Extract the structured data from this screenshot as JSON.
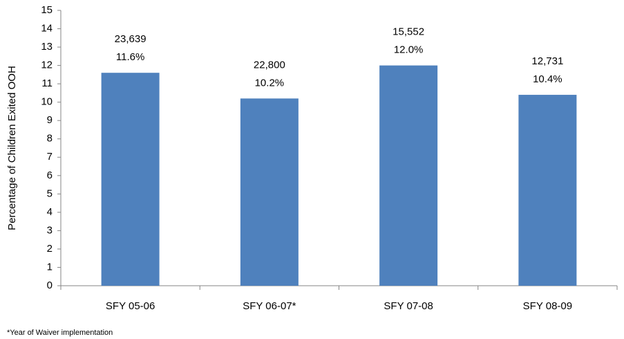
{
  "chart_data": {
    "type": "bar",
    "y_axis_label": "Percentage of Children Exited OOH",
    "categories": [
      "SFY 05-06",
      "SFY 06-07*",
      "SFY 07-08",
      "SFY 08-09"
    ],
    "values": [
      11.6,
      10.2,
      12.0,
      10.4
    ],
    "value_labels": [
      "11.6%",
      "10.2%",
      "12.0%",
      "10.4%"
    ],
    "counts": [
      {
        "value": 23639,
        "label": "23,639"
      },
      {
        "value": 22800,
        "label": "22,800"
      },
      {
        "value": 15552,
        "label": "15,552"
      },
      {
        "value": 12731,
        "label": "12,731"
      }
    ],
    "color": "#4f81bd",
    "ylim": [
      0,
      15
    ],
    "yticks": [
      0,
      1,
      2,
      3,
      4,
      5,
      6,
      7,
      8,
      9,
      10,
      11,
      12,
      13,
      14,
      15
    ],
    "footnote": "*Year of Waiver implementation"
  }
}
